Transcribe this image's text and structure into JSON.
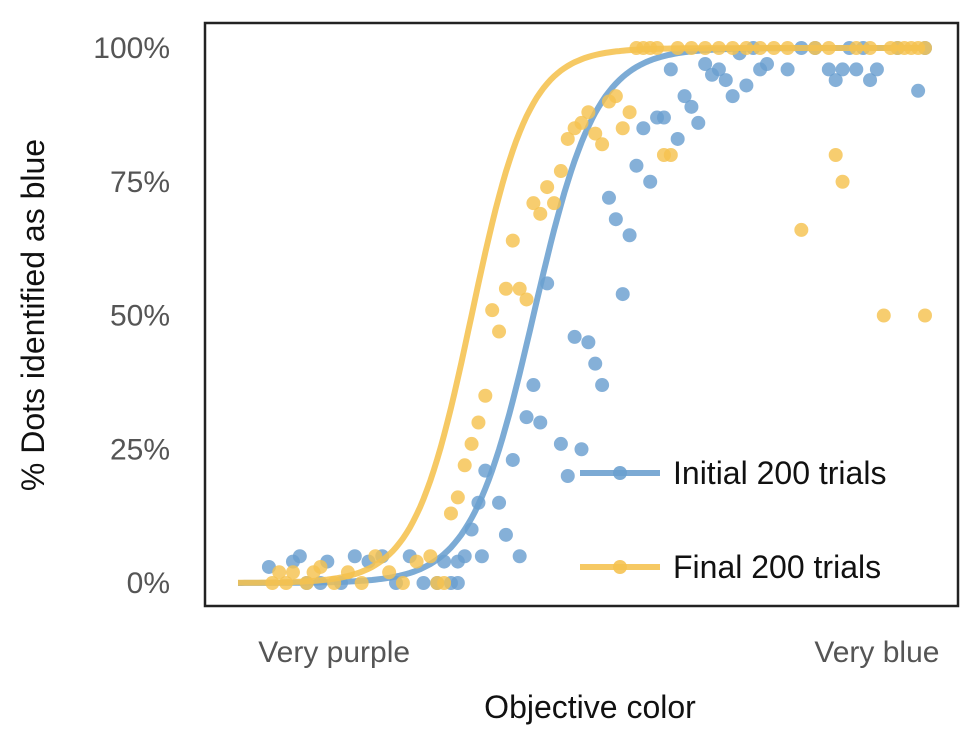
{
  "chart_data": {
    "type": "scatter",
    "title": "",
    "xlabel": "Objective color",
    "ylabel": "% Dots identified as blue",
    "xlim": [
      0,
      1
    ],
    "ylim": [
      0,
      100
    ],
    "x_tick_labels": [
      {
        "label": "Very purple",
        "at": 0.14
      },
      {
        "label": "Very blue",
        "at": 0.93
      }
    ],
    "y_ticks": [
      {
        "value": 0,
        "label": "0%"
      },
      {
        "value": 25,
        "label": "25%"
      },
      {
        "value": 50,
        "label": "50%"
      },
      {
        "value": 75,
        "label": "75%"
      },
      {
        "value": 100,
        "label": "100%"
      }
    ],
    "grid": false,
    "legend_position": "bottom-right",
    "series": [
      {
        "name": "Initial 200 trials",
        "color": "#6a9fcf",
        "fit": {
          "model": "logistic",
          "midpoint": 0.43,
          "slope": 22
        },
        "points": [
          {
            "x": 0.045,
            "y": 3
          },
          {
            "x": 0.08,
            "y": 4
          },
          {
            "x": 0.09,
            "y": 5
          },
          {
            "x": 0.1,
            "y": 0
          },
          {
            "x": 0.12,
            "y": 0
          },
          {
            "x": 0.13,
            "y": 4
          },
          {
            "x": 0.15,
            "y": 0
          },
          {
            "x": 0.17,
            "y": 5
          },
          {
            "x": 0.19,
            "y": 4
          },
          {
            "x": 0.21,
            "y": 5
          },
          {
            "x": 0.23,
            "y": 0
          },
          {
            "x": 0.25,
            "y": 5
          },
          {
            "x": 0.27,
            "y": 0
          },
          {
            "x": 0.29,
            "y": 0
          },
          {
            "x": 0.3,
            "y": 4
          },
          {
            "x": 0.32,
            "y": 4
          },
          {
            "x": 0.31,
            "y": 0
          },
          {
            "x": 0.32,
            "y": 0
          },
          {
            "x": 0.33,
            "y": 5
          },
          {
            "x": 0.34,
            "y": 10
          },
          {
            "x": 0.35,
            "y": 15
          },
          {
            "x": 0.355,
            "y": 5
          },
          {
            "x": 0.36,
            "y": 21
          },
          {
            "x": 0.38,
            "y": 15
          },
          {
            "x": 0.39,
            "y": 9
          },
          {
            "x": 0.4,
            "y": 23
          },
          {
            "x": 0.41,
            "y": 5
          },
          {
            "x": 0.42,
            "y": 31
          },
          {
            "x": 0.43,
            "y": 37
          },
          {
            "x": 0.44,
            "y": 30
          },
          {
            "x": 0.45,
            "y": 56
          },
          {
            "x": 0.47,
            "y": 26
          },
          {
            "x": 0.48,
            "y": 20
          },
          {
            "x": 0.49,
            "y": 46
          },
          {
            "x": 0.5,
            "y": 25
          },
          {
            "x": 0.51,
            "y": 45
          },
          {
            "x": 0.52,
            "y": 41
          },
          {
            "x": 0.53,
            "y": 37
          },
          {
            "x": 0.54,
            "y": 72
          },
          {
            "x": 0.55,
            "y": 68
          },
          {
            "x": 0.56,
            "y": 54
          },
          {
            "x": 0.57,
            "y": 65
          },
          {
            "x": 0.58,
            "y": 78
          },
          {
            "x": 0.59,
            "y": 85
          },
          {
            "x": 0.6,
            "y": 75
          },
          {
            "x": 0.61,
            "y": 87
          },
          {
            "x": 0.62,
            "y": 87
          },
          {
            "x": 0.63,
            "y": 96
          },
          {
            "x": 0.64,
            "y": 83
          },
          {
            "x": 0.65,
            "y": 91
          },
          {
            "x": 0.66,
            "y": 89
          },
          {
            "x": 0.67,
            "y": 86
          },
          {
            "x": 0.68,
            "y": 97
          },
          {
            "x": 0.69,
            "y": 95
          },
          {
            "x": 0.7,
            "y": 96
          },
          {
            "x": 0.71,
            "y": 94
          },
          {
            "x": 0.72,
            "y": 91
          },
          {
            "x": 0.73,
            "y": 99
          },
          {
            "x": 0.74,
            "y": 93
          },
          {
            "x": 0.75,
            "y": 100
          },
          {
            "x": 0.76,
            "y": 96
          },
          {
            "x": 0.77,
            "y": 97
          },
          {
            "x": 0.8,
            "y": 96
          },
          {
            "x": 0.82,
            "y": 100
          },
          {
            "x": 0.84,
            "y": 100
          },
          {
            "x": 0.86,
            "y": 96
          },
          {
            "x": 0.87,
            "y": 94
          },
          {
            "x": 0.88,
            "y": 96
          },
          {
            "x": 0.89,
            "y": 100
          },
          {
            "x": 0.9,
            "y": 96
          },
          {
            "x": 0.91,
            "y": 100
          },
          {
            "x": 0.92,
            "y": 94
          },
          {
            "x": 0.93,
            "y": 96
          },
          {
            "x": 0.96,
            "y": 100
          },
          {
            "x": 0.99,
            "y": 92
          },
          {
            "x": 1.0,
            "y": 100
          }
        ]
      },
      {
        "name": "Final 200 trials",
        "color": "#f5c24f",
        "fit": {
          "model": "logistic",
          "midpoint": 0.34,
          "slope": 24
        },
        "points": [
          {
            "x": 0.05,
            "y": 0
          },
          {
            "x": 0.06,
            "y": 2
          },
          {
            "x": 0.07,
            "y": 0
          },
          {
            "x": 0.08,
            "y": 2
          },
          {
            "x": 0.1,
            "y": 0
          },
          {
            "x": 0.11,
            "y": 2
          },
          {
            "x": 0.12,
            "y": 3
          },
          {
            "x": 0.14,
            "y": 0
          },
          {
            "x": 0.16,
            "y": 2
          },
          {
            "x": 0.18,
            "y": 0
          },
          {
            "x": 0.2,
            "y": 5
          },
          {
            "x": 0.22,
            "y": 2
          },
          {
            "x": 0.24,
            "y": 0
          },
          {
            "x": 0.26,
            "y": 4
          },
          {
            "x": 0.28,
            "y": 5
          },
          {
            "x": 0.29,
            "y": 0
          },
          {
            "x": 0.3,
            "y": 0
          },
          {
            "x": 0.31,
            "y": 13
          },
          {
            "x": 0.32,
            "y": 16
          },
          {
            "x": 0.33,
            "y": 22
          },
          {
            "x": 0.34,
            "y": 26
          },
          {
            "x": 0.35,
            "y": 30
          },
          {
            "x": 0.36,
            "y": 35
          },
          {
            "x": 0.37,
            "y": 51
          },
          {
            "x": 0.38,
            "y": 47
          },
          {
            "x": 0.39,
            "y": 55
          },
          {
            "x": 0.4,
            "y": 64
          },
          {
            "x": 0.41,
            "y": 55
          },
          {
            "x": 0.42,
            "y": 53
          },
          {
            "x": 0.43,
            "y": 71
          },
          {
            "x": 0.44,
            "y": 69
          },
          {
            "x": 0.45,
            "y": 74
          },
          {
            "x": 0.46,
            "y": 71
          },
          {
            "x": 0.47,
            "y": 77
          },
          {
            "x": 0.48,
            "y": 83
          },
          {
            "x": 0.49,
            "y": 85
          },
          {
            "x": 0.5,
            "y": 86
          },
          {
            "x": 0.51,
            "y": 88
          },
          {
            "x": 0.52,
            "y": 84
          },
          {
            "x": 0.53,
            "y": 82
          },
          {
            "x": 0.54,
            "y": 90
          },
          {
            "x": 0.55,
            "y": 91
          },
          {
            "x": 0.56,
            "y": 85
          },
          {
            "x": 0.57,
            "y": 88
          },
          {
            "x": 0.58,
            "y": 100
          },
          {
            "x": 0.59,
            "y": 100
          },
          {
            "x": 0.6,
            "y": 100
          },
          {
            "x": 0.61,
            "y": 100
          },
          {
            "x": 0.62,
            "y": 80
          },
          {
            "x": 0.63,
            "y": 80
          },
          {
            "x": 0.64,
            "y": 100
          },
          {
            "x": 0.66,
            "y": 100
          },
          {
            "x": 0.68,
            "y": 100
          },
          {
            "x": 0.7,
            "y": 100
          },
          {
            "x": 0.72,
            "y": 100
          },
          {
            "x": 0.74,
            "y": 100
          },
          {
            "x": 0.76,
            "y": 100
          },
          {
            "x": 0.78,
            "y": 100
          },
          {
            "x": 0.8,
            "y": 100
          },
          {
            "x": 0.82,
            "y": 66
          },
          {
            "x": 0.84,
            "y": 100
          },
          {
            "x": 0.86,
            "y": 100
          },
          {
            "x": 0.87,
            "y": 80
          },
          {
            "x": 0.88,
            "y": 75
          },
          {
            "x": 0.9,
            "y": 100
          },
          {
            "x": 0.92,
            "y": 100
          },
          {
            "x": 0.94,
            "y": 50
          },
          {
            "x": 0.95,
            "y": 100
          },
          {
            "x": 0.96,
            "y": 100
          },
          {
            "x": 0.97,
            "y": 100
          },
          {
            "x": 0.98,
            "y": 100
          },
          {
            "x": 0.99,
            "y": 100
          },
          {
            "x": 1.0,
            "y": 100
          },
          {
            "x": 1.0,
            "y": 50
          }
        ]
      }
    ]
  }
}
